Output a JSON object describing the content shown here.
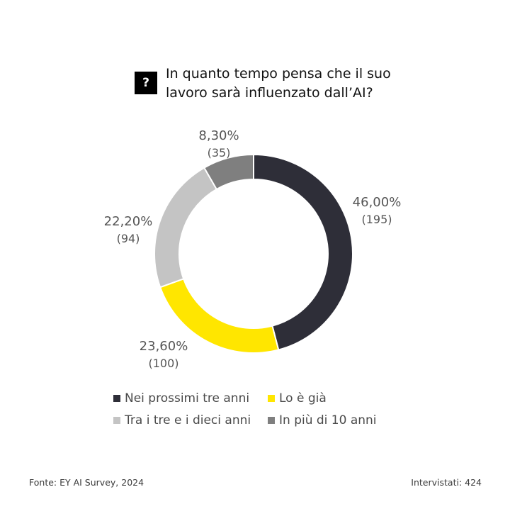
{
  "question_icon": "?",
  "title": "In quanto tempo pensa che il suo lavoro sarà influenzato dall’AI?",
  "chart_data": {
    "type": "pie",
    "title": "In quanto tempo pensa che il suo lavoro sarà influenzato dall’AI?",
    "slices": [
      {
        "name": "Nei prossimi tre anni",
        "percent_label": "46,00%",
        "count_label": "(195)",
        "value": 46.0,
        "count": 195,
        "color": "#2e2e38"
      },
      {
        "name": "Lo è già",
        "percent_label": "23,60%",
        "count_label": "(100)",
        "value": 23.6,
        "count": 100,
        "color": "#ffe600"
      },
      {
        "name": "Tra i tre e i dieci anni",
        "percent_label": "22,20%",
        "count_label": "(94)",
        "value": 22.2,
        "count": 94,
        "color": "#c4c4c4"
      },
      {
        "name": "In più di 10 anni",
        "percent_label": "8,30%",
        "count_label": "(35)",
        "value": 8.3,
        "count": 35,
        "color": "#7f7f7f"
      }
    ],
    "legend_position": "bottom"
  },
  "footer": {
    "source": "Fonte: EY AI Survey, 2024",
    "respondents": "Intervistati: 424"
  }
}
